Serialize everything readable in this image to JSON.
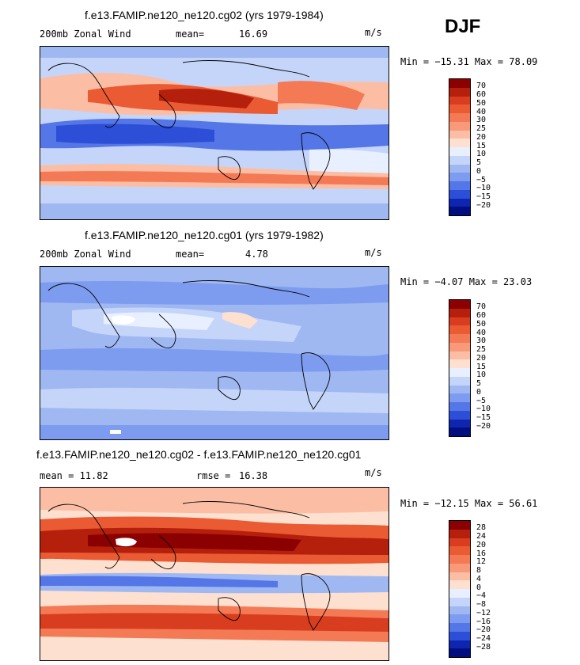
{
  "season": "DJF",
  "panels": [
    {
      "title": "f.e13.FAMIP.ne120_ne120.cg02 (yrs 1979-1984)",
      "left_label": "200mb Zonal Wind",
      "stat_label": "mean=",
      "stat_value": "16.69",
      "units": "m/s",
      "minmax": "Min = −15.31  Max =  78.09",
      "colorbar_levels": [
        "70",
        "60",
        "50",
        "40",
        "30",
        "25",
        "20",
        "15",
        "10",
        "5",
        "0",
        "−5",
        "−10",
        "−15",
        "−20"
      ]
    },
    {
      "title": "f.e13.FAMIP.ne120_ne120.cg01 (yrs 1979-1982)",
      "left_label": "200mb Zonal Wind",
      "stat_label": "mean=",
      "stat_value": "4.78",
      "units": "m/s",
      "minmax": "Min =  −4.07  Max =  23.03",
      "colorbar_levels": [
        "70",
        "60",
        "50",
        "40",
        "30",
        "25",
        "20",
        "15",
        "10",
        "5",
        "0",
        "−5",
        "−10",
        "−15",
        "−20"
      ]
    },
    {
      "title": "f.e13.FAMIP.ne120_ne120.cg02 - f.e13.FAMIP.ne120_ne120.cg01",
      "left_label": "mean =  11.82",
      "stat_label": "rmse =",
      "stat_value": "16.38",
      "units": "m/s",
      "minmax": "Min = −12.15  Max =  56.61",
      "colorbar_levels": [
        "28",
        "24",
        "20",
        "16",
        "12",
        "8",
        "4",
        "0",
        "−4",
        "−8",
        "−12",
        "−16",
        "−20",
        "−24",
        "−28"
      ]
    }
  ],
  "colors": [
    "#8b0000",
    "#b5200d",
    "#d93d1f",
    "#ea5a33",
    "#f47a55",
    "#f89a7a",
    "#fbbea5",
    "#fde0d0",
    "#e8f0ff",
    "#c5d5fa",
    "#9fb8f2",
    "#7d9cf0",
    "#5576e6",
    "#2d4fd8",
    "#0e25b0",
    "#000e80"
  ],
  "chart_data": [
    {
      "type": "heatmap",
      "title": "f.e13.FAMIP.ne120_ne120.cg02 (yrs 1979-1984)",
      "variable": "200mb Zonal Wind",
      "units": "m/s",
      "mean": 16.69,
      "min": -15.31,
      "max": 78.09
    },
    {
      "type": "heatmap",
      "title": "f.e13.FAMIP.ne120_ne120.cg01 (yrs 1979-1982)",
      "variable": "200mb Zonal Wind",
      "units": "m/s",
      "mean": 4.78,
      "min": -4.07,
      "max": 23.03
    },
    {
      "type": "heatmap",
      "title": "f.e13.FAMIP.ne120_ne120.cg02 - f.e13.FAMIP.ne120_ne120.cg01",
      "units": "m/s",
      "mean": 11.82,
      "rmse": 16.38,
      "min": -12.15,
      "max": 56.61
    }
  ]
}
